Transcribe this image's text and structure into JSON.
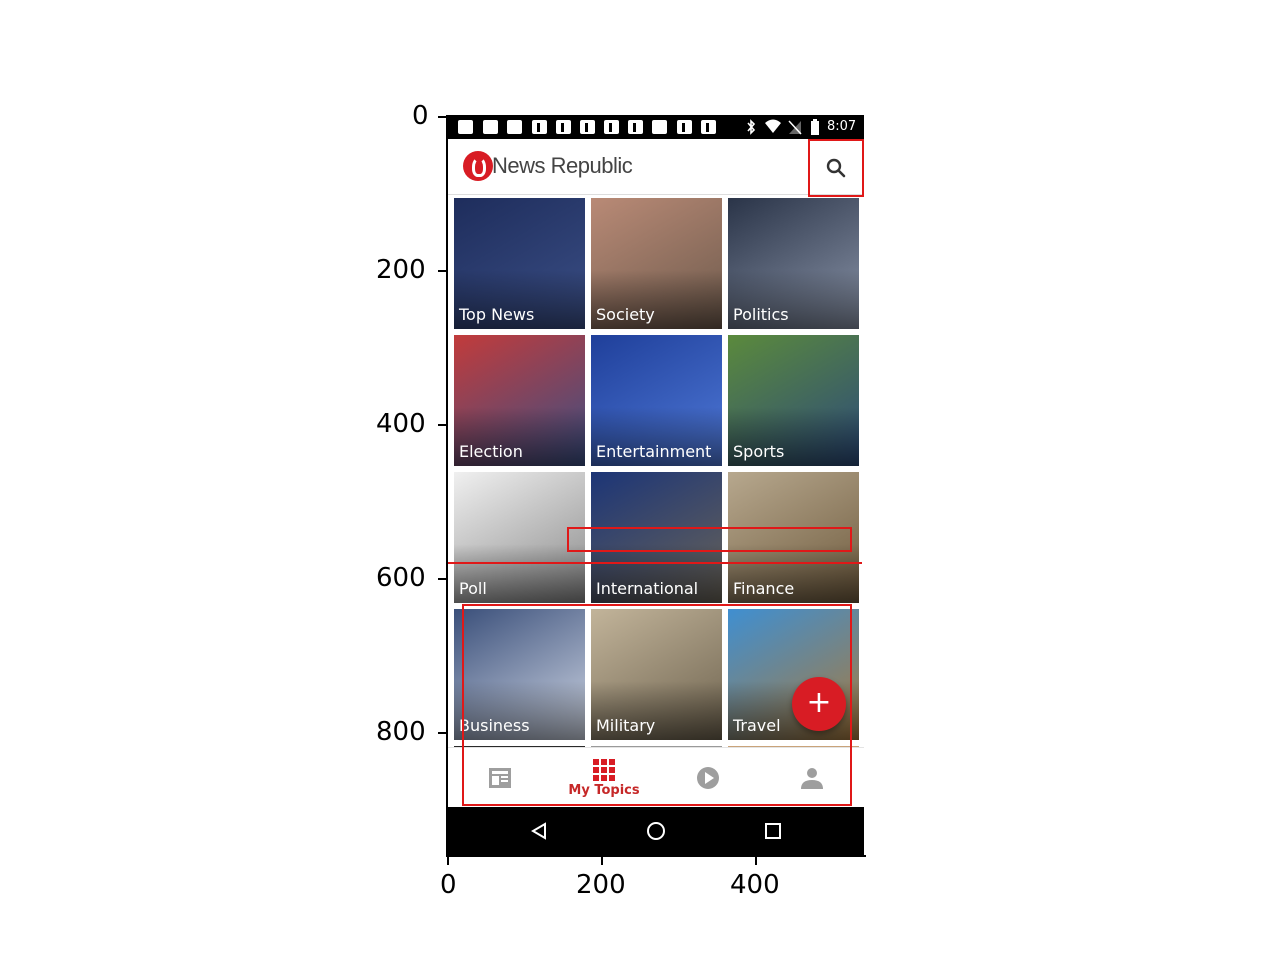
{
  "status_bar": {
    "time": "8:07"
  },
  "app_bar": {
    "brand": "News Republic",
    "search_icon": "search-icon"
  },
  "topics": [
    {
      "label": "Top News",
      "colors": [
        "#1e2d5c",
        "#3b4f86"
      ]
    },
    {
      "label": "Society",
      "colors": [
        "#b98a76",
        "#6d5a4c"
      ]
    },
    {
      "label": "Politics",
      "colors": [
        "#2a3448",
        "#8a94a8"
      ]
    },
    {
      "label": "Election",
      "colors": [
        "#c23b3b",
        "#3a4f84"
      ]
    },
    {
      "label": "Entertainment",
      "colors": [
        "#1f3f9a",
        "#4f79d8"
      ]
    },
    {
      "label": "Sports",
      "colors": [
        "#5b8a3c",
        "#2c4a7a"
      ]
    },
    {
      "label": "Poll",
      "colors": [
        "#f0f0f0",
        "#888888"
      ]
    },
    {
      "label": "International",
      "colors": [
        "#1c3577",
        "#6a6457"
      ]
    },
    {
      "label": "Finance",
      "colors": [
        "#b7a88e",
        "#6e5a3d"
      ]
    },
    {
      "label": "Business",
      "colors": [
        "#3a4f7a",
        "#cfd6e4"
      ]
    },
    {
      "label": "Military",
      "colors": [
        "#c2b49a",
        "#6d624e"
      ]
    },
    {
      "label": "Travel",
      "colors": [
        "#3f8fd1",
        "#a87a3d"
      ]
    }
  ],
  "fab": {
    "label": "+"
  },
  "bottom_nav": [
    {
      "icon": "news-feed-icon",
      "label": ""
    },
    {
      "icon": "grid-icon",
      "label": "My Topics"
    },
    {
      "icon": "play-icon",
      "label": ""
    },
    {
      "icon": "profile-icon",
      "label": ""
    }
  ],
  "axes": {
    "y_ticks": [
      "0",
      "200",
      "400",
      "600",
      "800"
    ],
    "x_ticks": [
      "0",
      "200",
      "400"
    ]
  },
  "accent": "#d81c24"
}
